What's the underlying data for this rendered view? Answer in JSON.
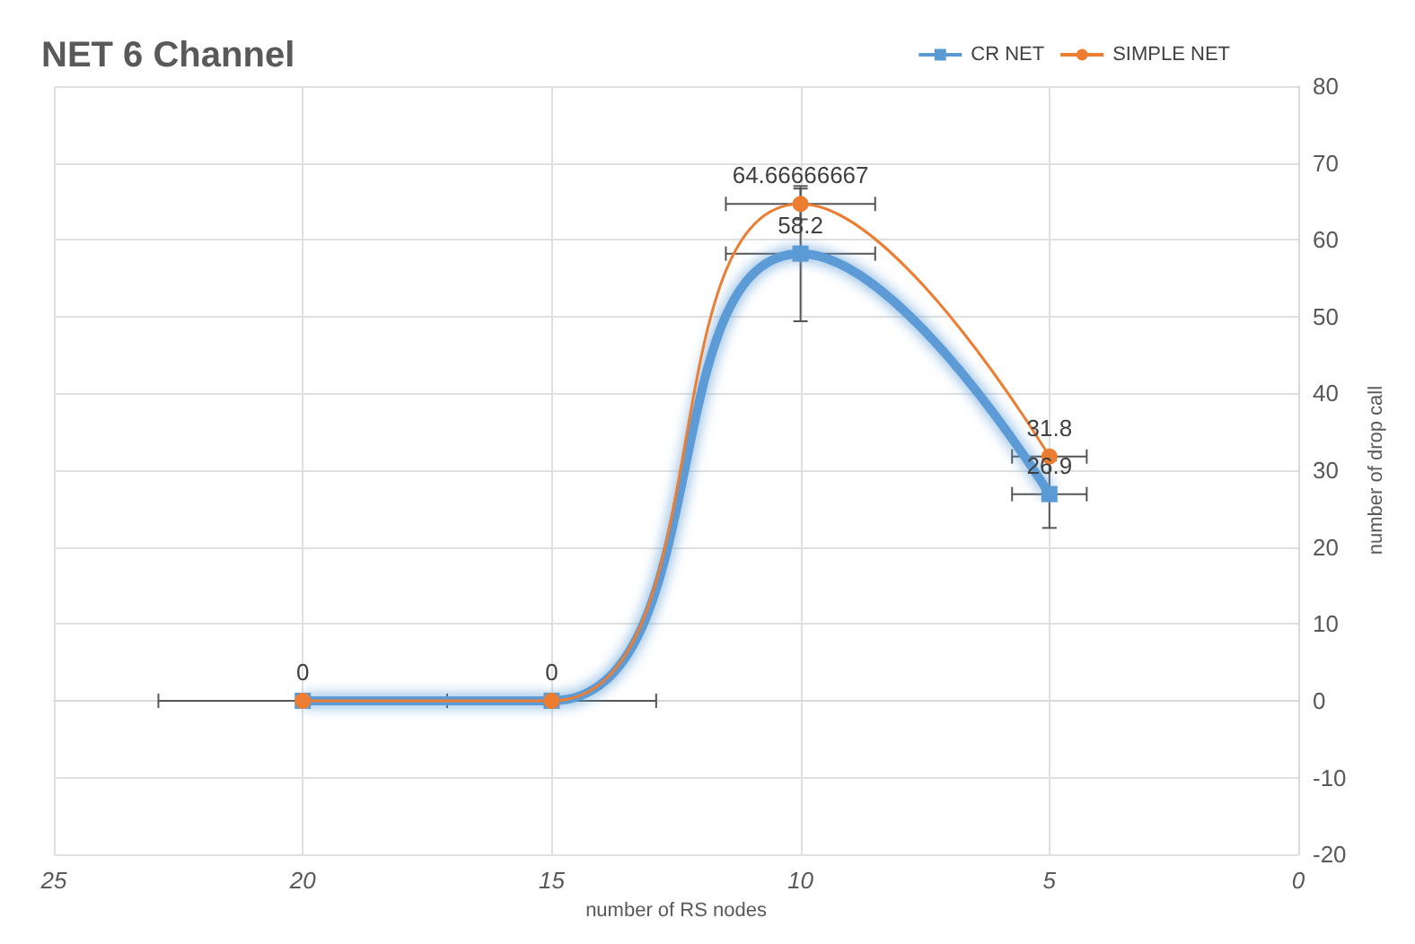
{
  "chart_data": {
    "type": "line",
    "title": "NET 6 Channel",
    "xlabel": "number of RS nodes",
    "ylabel": "number of drop call",
    "x": [
      20,
      15,
      10,
      5
    ],
    "series": [
      {
        "name": "CR NET",
        "color": "#5b9bd5",
        "marker": "square",
        "values": [
          0,
          0,
          58.2,
          26.9
        ],
        "value_labels": [
          null,
          null,
          "58.2",
          "26.9"
        ],
        "errors": [
          0,
          0,
          8.8,
          4.4
        ],
        "xerrors": [
          null,
          null,
          1.5,
          0.75
        ]
      },
      {
        "name": "SIMPLE NET",
        "color": "#ed7d31",
        "marker": "circle",
        "values": [
          0,
          0,
          64.66666667,
          31.8
        ],
        "value_labels": [
          "0",
          "0",
          "64.66666667",
          "31.8"
        ],
        "errors": [
          0,
          0,
          2,
          0
        ],
        "xerrors": [
          2.9,
          2.1,
          1.5,
          0.75
        ]
      }
    ],
    "xlim": [
      25,
      0
    ],
    "xticks": [
      25,
      20,
      15,
      10,
      5,
      0
    ],
    "ylim": [
      -20,
      80
    ],
    "yticks": [
      -20,
      -10,
      0,
      10,
      20,
      30,
      40,
      50,
      60,
      70,
      80
    ],
    "grid": true,
    "legend": "top right"
  }
}
